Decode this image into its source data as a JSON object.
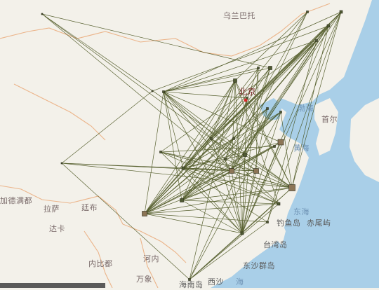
{
  "map": {
    "labels": [
      {
        "id": "mongolia",
        "text": "乌兰巴托",
        "class": "country"
      },
      {
        "id": "beijing",
        "text": "北京",
        "class": "capital"
      },
      {
        "id": "seoul",
        "text": "首尔",
        "class": "city"
      },
      {
        "id": "bohai",
        "text": "渤海",
        "class": "sea"
      },
      {
        "id": "yellow-sea",
        "text": "黄海",
        "class": "sea"
      },
      {
        "id": "east-sea",
        "text": "东海",
        "class": "sea"
      },
      {
        "id": "diaoyu",
        "text": "钓鱼岛",
        "class": "island"
      },
      {
        "id": "chiwei",
        "text": "赤尾屿",
        "class": "island"
      },
      {
        "id": "taiwan",
        "text": "台湾岛",
        "class": "island"
      },
      {
        "id": "dongsha",
        "text": "东沙群岛",
        "class": "island"
      },
      {
        "id": "hanoi",
        "text": "河内",
        "class": "city"
      },
      {
        "id": "nay-pyi-taw",
        "text": "内比都",
        "class": "city"
      },
      {
        "id": "wanxiang",
        "text": "万象",
        "class": "city"
      },
      {
        "id": "lhasa",
        "text": "拉萨",
        "class": "city"
      },
      {
        "id": "kathmandu",
        "text": "加德满都",
        "class": "city"
      },
      {
        "id": "thimphu",
        "text": "廷布",
        "class": "city"
      },
      {
        "id": "dhaka",
        "text": "达卡",
        "class": "city"
      },
      {
        "id": "hainan",
        "text": "海南岛",
        "class": "island"
      },
      {
        "id": "xisha",
        "text": "西沙",
        "class": "island"
      },
      {
        "id": "sea-bottom",
        "text": "海",
        "class": "sea"
      }
    ],
    "colors": {
      "land": "#f3f1ea",
      "sea": "#a9cfe8",
      "border": "#e9a06a",
      "flow": "#3f4a12",
      "node_small": "#4f5a32",
      "node_large": "#8c7556",
      "capital_marker": "#d62a2a"
    }
  }
}
